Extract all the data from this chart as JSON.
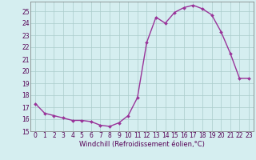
{
  "x": [
    0,
    1,
    2,
    3,
    4,
    5,
    6,
    7,
    8,
    9,
    10,
    11,
    12,
    13,
    14,
    15,
    16,
    17,
    18,
    19,
    20,
    21,
    22,
    23
  ],
  "y": [
    17.3,
    16.5,
    16.3,
    16.1,
    15.9,
    15.9,
    15.8,
    15.5,
    15.4,
    15.7,
    16.3,
    17.8,
    22.4,
    24.5,
    24.0,
    24.9,
    25.3,
    25.5,
    25.2,
    24.7,
    23.3,
    21.5,
    19.4,
    19.4
  ],
  "line_color": "#993399",
  "marker": "D",
  "marker_size": 2,
  "line_width": 1.0,
  "bg_color": "#d5eef0",
  "grid_color": "#aacccc",
  "xlabel": "Windchill (Refroidissement éolien,°C)",
  "xlabel_fontsize": 6,
  "ylim": [
    15,
    25.8
  ],
  "yticks": [
    15,
    16,
    17,
    18,
    19,
    20,
    21,
    22,
    23,
    24,
    25
  ],
  "xtick_labels": [
    "0",
    "1",
    "2",
    "3",
    "4",
    "5",
    "6",
    "7",
    "8",
    "9",
    "10",
    "11",
    "12",
    "13",
    "14",
    "15",
    "16",
    "17",
    "18",
    "19",
    "20",
    "21",
    "22",
    "23"
  ],
  "tick_fontsize": 5.5,
  "spine_color": "#777777",
  "text_color": "#550055"
}
